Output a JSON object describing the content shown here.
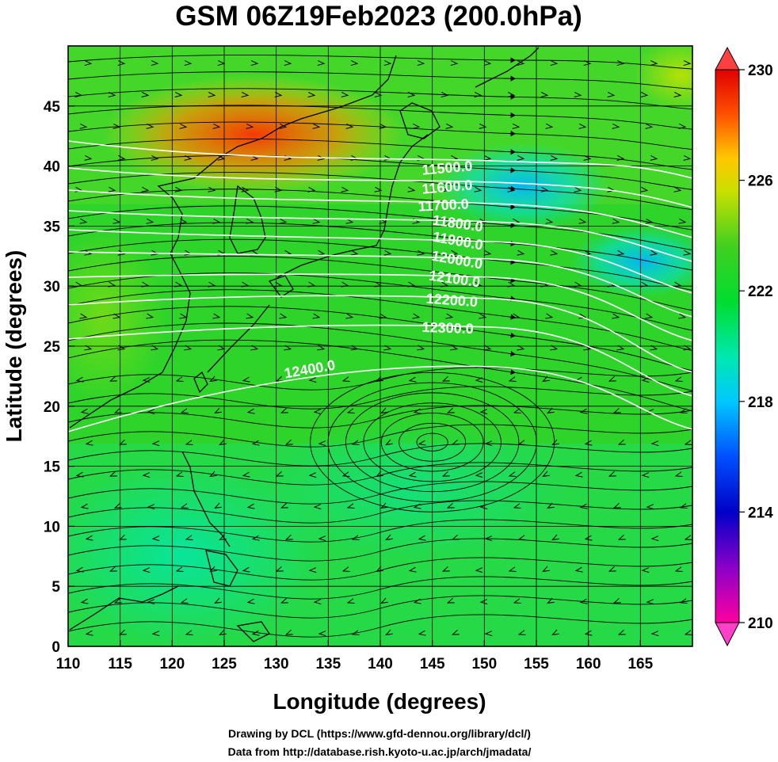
{
  "title": "GSM 06Z19Feb2023 (200.0hPa)",
  "xaxis": {
    "label": "Longitude (degrees)",
    "range": [
      110,
      170
    ],
    "ticks": [
      "110",
      "115",
      "120",
      "125",
      "130",
      "135",
      "140",
      "145",
      "150",
      "155",
      "160",
      "165"
    ]
  },
  "yaxis": {
    "label": "Latitude  (degrees)",
    "range": [
      0,
      50
    ],
    "ticks": [
      "0",
      "5",
      "10",
      "15",
      "20",
      "25",
      "30",
      "35",
      "40",
      "45"
    ]
  },
  "colorbar": {
    "range": [
      210,
      230
    ],
    "ticks": [
      "210",
      "214",
      "218",
      "222",
      "226",
      "230"
    ]
  },
  "contours": {
    "labels": [
      "11500.0",
      "11600.0",
      "11700.0",
      "11800.0",
      "11900.0",
      "12000.0",
      "12100.0",
      "12200.0",
      "12300.0",
      "12400.0"
    ]
  },
  "credits": {
    "line1": "Drawing by DCL (https://www.gfd-dennou.org/library/dcl/)",
    "line2": "Data from http://database.rish.kyoto-u.ac.jp/arch/jmadata/"
  }
}
